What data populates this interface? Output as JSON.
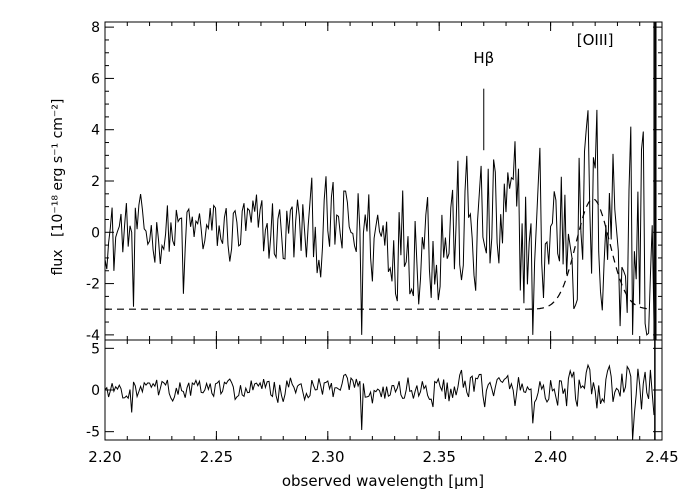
{
  "chart_data": {
    "type": "line",
    "xlabel": "observed wavelength [μm]",
    "xlim": [
      2.2,
      2.45
    ],
    "x_ticks": [
      "2.20",
      "2.25",
      "2.30",
      "2.35",
      "2.40",
      "2.45"
    ],
    "x_tick_values": [
      2.2,
      2.25,
      2.3,
      2.35,
      2.4,
      2.45
    ],
    "panels": [
      {
        "name": "spectrum",
        "ylabel_prefix": "flux",
        "ylabel_unit": "[10⁻¹⁸ erg s⁻¹ cm⁻²]",
        "ylim": [
          -4.2,
          8.2
        ],
        "y_ticks": [
          "-4",
          "-2",
          "0",
          "2",
          "4",
          "6",
          "8"
        ],
        "y_tick_values": [
          -4,
          -2,
          0,
          2,
          4,
          6,
          8
        ],
        "annotations": [
          {
            "text": "Hβ",
            "x": 2.37,
            "y": 6.6,
            "line_from": 5.6,
            "line_to": 3.2
          },
          {
            "text": "[OIII]",
            "x": 2.42,
            "y": 7.3
          }
        ],
        "series": [
          {
            "style": "noisy-spectrum",
            "x_range": [
              2.2,
              2.447
            ],
            "envelope_x": [
              2.2,
              2.25,
              2.3,
              2.35,
              2.4,
              2.43,
              2.445
            ],
            "envelope_amp": [
              1.1,
              1.2,
              1.8,
              2.6,
              3.4,
              4.0,
              6.0
            ],
            "dips": [
              [
                2.204,
                -1.5
              ],
              [
                2.213,
                -2.9
              ],
              [
                2.235,
                -2.4
              ],
              [
                2.315,
                -4.0
              ],
              [
                2.392,
                -4.0
              ],
              [
                2.437,
                -4.0
              ],
              [
                2.443,
                -4.0
              ]
            ]
          },
          {
            "style": "dashed",
            "description_values": {
              "baseline": -3.0,
              "peak_x": 2.419,
              "peak_y": 1.3,
              "sigma": 0.0075
            },
            "x_range": [
              2.2,
              2.445
            ]
          }
        ]
      },
      {
        "name": "residuals",
        "ylim": [
          -6,
          6
        ],
        "y_ticks": [
          "-5",
          "0",
          "5"
        ],
        "y_tick_values": [
          -5,
          0,
          5
        ],
        "series": [
          {
            "style": "noisy-residual",
            "x_range": [
              2.2,
              2.447
            ],
            "envelope_x": [
              2.2,
              2.3,
              2.4,
              2.445
            ],
            "envelope_amp": [
              1.0,
              1.5,
              2.0,
              3.0
            ],
            "dips": [
              [
                2.212,
                -2.7
              ],
              [
                2.315,
                -4.8
              ],
              [
                2.392,
                -4.0
              ],
              [
                2.437,
                -6.0
              ]
            ]
          }
        ]
      }
    ]
  }
}
